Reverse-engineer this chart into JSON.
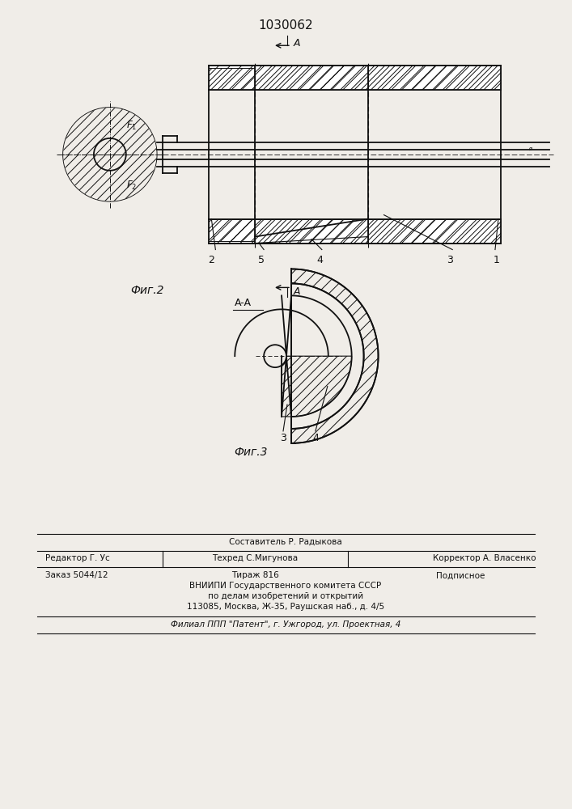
{
  "title": "1030062",
  "fig2_label": "Фиг.2",
  "fig3_label": "Фиг.3",
  "bg_color": "#f0ede8",
  "line_color": "#111111",
  "footer": {
    "line1": "Составитель Р. Радыкова",
    "editor": "Редактор Г. Ус",
    "tekhred": "Техред С.Мигунова",
    "korrektor": "Корректор А. Власенко",
    "zakaz": "Заказ 5044/12",
    "tirazh": "Тираж 816",
    "podpisnoe": "Подписное",
    "vniip1": "ВНИИПИ Государственного комитета СССР",
    "vniip2": "по делам изобретений и открытий",
    "address": "113085, Москва, Ж-35, Раушская наб., д. 4/5",
    "filial": "Филиал ППП \"Патент\", г. Ужгород, ул. Проектная, 4"
  }
}
